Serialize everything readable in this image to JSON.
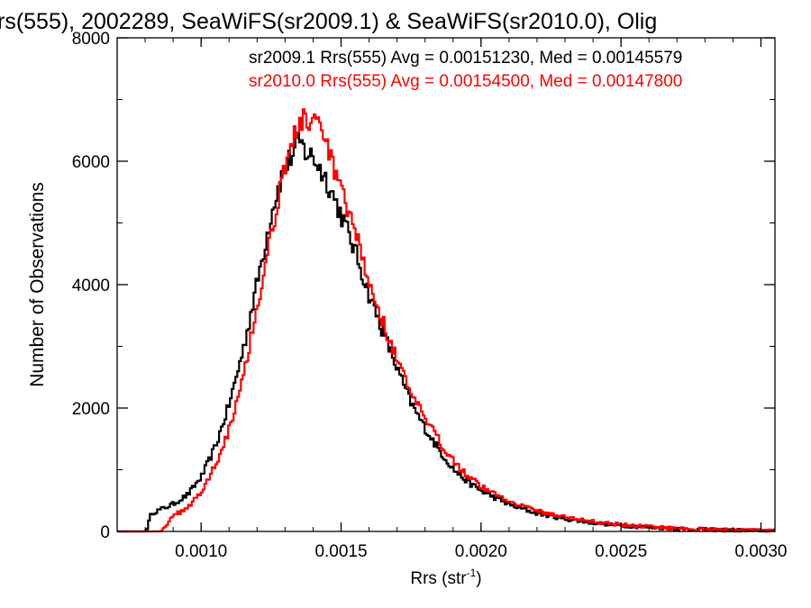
{
  "chart_data": {
    "type": "line",
    "title": "rs(555), 2002289, SeaWiFS(sr2009.1) & SeaWiFS(sr2010.0), Olig",
    "xlabel": "Rrs (str",
    "xlabel_sup": "-1",
    "xlabel_end": ")",
    "ylabel": "Number of Observations",
    "xlim": [
      0.0007,
      0.00305
    ],
    "ylim": [
      0,
      8000
    ],
    "x_ticks": [
      0.001,
      0.0015,
      0.002,
      0.0025,
      0.003
    ],
    "x_tick_labels": [
      "0.0010",
      "0.0015",
      "0.0020",
      "0.0025",
      "0.0030"
    ],
    "y_ticks": [
      0,
      2000,
      4000,
      6000,
      8000
    ],
    "y_tick_labels": [
      "0",
      "2000",
      "4000",
      "6000",
      "8000"
    ],
    "grid": false,
    "legend_position": "top-right",
    "annotations": [
      {
        "text": "sr2009.1 Rrs(555) Avg = 0.00151230, Med = 0.00145579",
        "color": "#000000"
      },
      {
        "text": "sr2010.0 Rrs(555) Avg = 0.00154500, Med = 0.00147800",
        "color": "#ff0000"
      }
    ],
    "series": [
      {
        "color": "#000000",
        "x": [
          0.0007,
          0.0008,
          0.00082,
          0.00085,
          0.0009,
          0.00095,
          0.001,
          0.00105,
          0.0011,
          0.00115,
          0.0012,
          0.00125,
          0.00128,
          0.0013,
          0.00132,
          0.00135,
          0.00137,
          0.0014,
          0.00142,
          0.00145,
          0.0015,
          0.00155,
          0.0016,
          0.00165,
          0.0017,
          0.00175,
          0.0018,
          0.00185,
          0.0019,
          0.00195,
          0.002,
          0.0021,
          0.0022,
          0.0023,
          0.0024,
          0.0025,
          0.0026,
          0.0027,
          0.0028,
          0.0029,
          0.003,
          0.00305
        ],
        "y": [
          0,
          0,
          300,
          350,
          450,
          600,
          900,
          1400,
          2100,
          3000,
          4100,
          5200,
          5700,
          5900,
          6100,
          6300,
          6150,
          6050,
          5900,
          5650,
          5100,
          4500,
          3800,
          3200,
          2600,
          2050,
          1650,
          1300,
          1000,
          800,
          650,
          430,
          290,
          200,
          140,
          95,
          65,
          45,
          30,
          20,
          12,
          8
        ]
      },
      {
        "color": "#ff0000",
        "x": [
          0.0007,
          0.00085,
          0.00088,
          0.0009,
          0.00095,
          0.001,
          0.00105,
          0.0011,
          0.00115,
          0.0012,
          0.00125,
          0.00128,
          0.0013,
          0.00132,
          0.00135,
          0.00137,
          0.0014,
          0.00142,
          0.00145,
          0.0015,
          0.00155,
          0.0016,
          0.00165,
          0.0017,
          0.00175,
          0.0018,
          0.00185,
          0.0019,
          0.00195,
          0.002,
          0.0021,
          0.0022,
          0.0023,
          0.0024,
          0.0025,
          0.0026,
          0.0027,
          0.0028,
          0.0029,
          0.003,
          0.00305
        ],
        "y": [
          0,
          0,
          150,
          250,
          400,
          650,
          1100,
          1700,
          2600,
          3700,
          4900,
          5600,
          6000,
          6300,
          6600,
          6700,
          6650,
          6450,
          6200,
          5450,
          4800,
          4000,
          3350,
          2750,
          2200,
          1800,
          1450,
          1150,
          900,
          720,
          490,
          330,
          230,
          160,
          110,
          75,
          52,
          35,
          22,
          14,
          9
        ]
      }
    ]
  }
}
